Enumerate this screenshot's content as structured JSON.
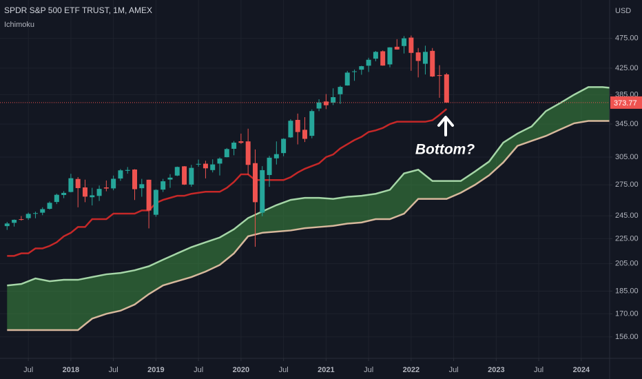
{
  "chart_data": {
    "type": "candlestick",
    "title": "SPDR S&P 500 ETF TRUST, 1M, AMEX",
    "indicator": "Ichimoku",
    "currency": "USD",
    "annotation": "Bottom?",
    "log_scale": true,
    "grid": true,
    "up_color": "#26a69a",
    "down_color": "#ef5350",
    "last_price": 373.77,
    "xlim": [
      "2017-03",
      "2024-05"
    ],
    "xticks": [
      {
        "value": "2017-07",
        "label": "Jul"
      },
      {
        "value": "2018-01",
        "label": "2018"
      },
      {
        "value": "2018-07",
        "label": "Jul"
      },
      {
        "value": "2019-01",
        "label": "2019"
      },
      {
        "value": "2019-07",
        "label": "Jul"
      },
      {
        "value": "2020-01",
        "label": "2020"
      },
      {
        "value": "2020-07",
        "label": "Jul"
      },
      {
        "value": "2021-01",
        "label": "2021"
      },
      {
        "value": "2021-07",
        "label": "Jul"
      },
      {
        "value": "2022-01",
        "label": "2022"
      },
      {
        "value": "2022-07",
        "label": "Jul"
      },
      {
        "value": "2023-01",
        "label": "2023"
      },
      {
        "value": "2023-07",
        "label": "Jul"
      },
      {
        "value": "2024-01",
        "label": "2024"
      }
    ],
    "ylim": [
      144,
      548
    ],
    "yticks": [
      {
        "value": 475,
        "label": "475.00"
      },
      {
        "value": 425,
        "label": "425.00"
      },
      {
        "value": 385,
        "label": "385.00"
      },
      {
        "value": 345,
        "label": "345.00"
      },
      {
        "value": 305,
        "label": "305.00"
      },
      {
        "value": 275,
        "label": "275.00"
      },
      {
        "value": 245,
        "label": "245.00"
      },
      {
        "value": 225,
        "label": "225.00"
      },
      {
        "value": 205,
        "label": "205.00"
      },
      {
        "value": 185,
        "label": "185.00"
      },
      {
        "value": 170,
        "label": "170.00"
      },
      {
        "value": 156,
        "label": "156.00"
      }
    ],
    "x": [
      "2017-04",
      "2017-05",
      "2017-06",
      "2017-07",
      "2017-08",
      "2017-09",
      "2017-10",
      "2017-11",
      "2017-12",
      "2018-01",
      "2018-02",
      "2018-03",
      "2018-04",
      "2018-05",
      "2018-06",
      "2018-07",
      "2018-08",
      "2018-09",
      "2018-10",
      "2018-11",
      "2018-12",
      "2019-01",
      "2019-02",
      "2019-03",
      "2019-04",
      "2019-05",
      "2019-06",
      "2019-07",
      "2019-08",
      "2019-09",
      "2019-10",
      "2019-11",
      "2019-12",
      "2020-01",
      "2020-02",
      "2020-03",
      "2020-04",
      "2020-05",
      "2020-06",
      "2020-07",
      "2020-08",
      "2020-09",
      "2020-10",
      "2020-11",
      "2020-12",
      "2021-01",
      "2021-02",
      "2021-03",
      "2021-04",
      "2021-05",
      "2021-06",
      "2021-07",
      "2021-08",
      "2021-09",
      "2021-10",
      "2021-11",
      "2021-12",
      "2022-01",
      "2022-02",
      "2022-03",
      "2022-04",
      "2022-05",
      "2022-06"
    ],
    "open": [
      235.8,
      238.7,
      241.97,
      242.9,
      247.5,
      247.9,
      251.5,
      258.0,
      264.8,
      267.8,
      281.1,
      272.4,
      262.6,
      263.9,
      272.4,
      271.4,
      281.6,
      289.8,
      291.2,
      271.6,
      280.3,
      245.98,
      270.2,
      280.5,
      284.7,
      294.7,
      275.3,
      296.7,
      297.6,
      290.6,
      297.7,
      304.9,
      314.6,
      323.5,
      323.4,
      298.2,
      247.98,
      285.3,
      303.6,
      309.6,
      328.3,
      350.4,
      337.7,
      330.2,
      365.6,
      375.3,
      373.7,
      385.6,
      398.4,
      419.4,
      422.6,
      428.9,
      440.3,
      452.6,
      430.98,
      460.3,
      461.6,
      476.3,
      450.7,
      432.0,
      453.3,
      414.0,
      415.2
    ],
    "high": [
      239.5,
      241.7,
      244.8,
      248.0,
      248.9,
      252.9,
      258.5,
      266.1,
      268.6,
      286.6,
      283.1,
      280.4,
      272.0,
      274.3,
      279.5,
      284.7,
      291.7,
      293.9,
      291.6,
      281.2,
      280.4,
      270.5,
      281.2,
      286.2,
      294.45,
      294.95,
      296.3,
      302.2,
      300.9,
      302.5,
      304.6,
      315.5,
      323.8,
      332.95,
      339.1,
      313.8,
      294.9,
      306.4,
      323.4,
      327.2,
      351.3,
      358.75,
      354.0,
      364.4,
      378.5,
      385.85,
      394.2,
      398.0,
      420.7,
      422.8,
      428.8,
      441.8,
      453.1,
      454.05,
      459.6,
      473.5,
      479.0,
      479.98,
      458.1,
      462.1,
      458.1,
      429.7,
      417.4
    ],
    "low": [
      232.5,
      235.4,
      240.7,
      241.3,
      242.8,
      245.6,
      250.9,
      256.0,
      261.7,
      267.4,
      252.9,
      257.8,
      254.7,
      259.0,
      268.5,
      269.5,
      279.2,
      286.7,
      259.9,
      263.1,
      233.8,
      244.2,
      267.8,
      272.0,
      284.1,
      274.9,
      273.1,
      294.3,
      281.7,
      288.1,
      284.8,
      304.7,
      307.1,
      320.4,
      285.5,
      218.3,
      244.6,
      272.99,
      296.7,
      306.0,
      327.7,
      319.8,
      322.6,
      327.2,
      362.0,
      364.8,
      370.4,
      371.9,
      398.2,
      405.4,
      414.7,
      419.0,
      436.1,
      428.8,
      426.4,
      455.3,
      448.9,
      420.8,
      410.6,
      415.1,
      411.2,
      380.5,
      373.3
    ],
    "close": [
      238.1,
      241.4,
      241.8,
      246.8,
      247.5,
      251.2,
      257.2,
      265.0,
      266.9,
      281.9,
      271.7,
      263.2,
      264.5,
      270.9,
      271.3,
      281.3,
      290.3,
      290.7,
      270.6,
      275.7,
      249.9,
      269.9,
      278.7,
      282.5,
      294.0,
      275.3,
      293.0,
      297.4,
      292.5,
      296.8,
      303.3,
      314.3,
      321.9,
      321.7,
      296.3,
      257.8,
      290.5,
      304.3,
      308.4,
      326.5,
      349.3,
      334.9,
      326.5,
      362.1,
      373.9,
      370.1,
      381.4,
      396.3,
      418.0,
      420.0,
      428.1,
      438.5,
      451.6,
      429.1,
      459.25,
      455.6,
      475.0,
      449.9,
      436.6,
      451.6,
      412.0,
      412.9,
      373.77
    ],
    "base_line": {
      "color": "#c62828",
      "values": [
        211,
        211,
        213,
        213,
        217,
        217,
        219,
        222,
        227,
        230,
        235,
        235,
        242,
        242,
        242,
        247,
        247,
        247,
        247,
        250,
        250,
        257,
        260,
        262,
        264,
        264,
        266,
        267,
        268,
        268,
        268,
        272,
        278,
        286,
        286,
        280,
        280,
        280,
        280,
        280,
        283,
        288,
        292,
        295,
        298,
        305,
        308,
        315,
        320,
        325,
        329,
        335,
        337,
        340,
        345,
        348,
        348,
        348,
        348,
        348,
        350,
        357,
        365
      ]
    },
    "cloud": {
      "fill": "#3d8b40",
      "x": [
        "2017-04",
        "2017-06",
        "2017-08",
        "2017-10",
        "2017-12",
        "2018-02",
        "2018-04",
        "2018-06",
        "2018-08",
        "2018-10",
        "2018-12",
        "2019-02",
        "2019-04",
        "2019-06",
        "2019-08",
        "2019-10",
        "2019-12",
        "2020-02",
        "2020-04",
        "2020-06",
        "2020-08",
        "2020-10",
        "2020-12",
        "2021-02",
        "2021-04",
        "2021-06",
        "2021-08",
        "2021-10",
        "2021-12",
        "2022-02",
        "2022-04",
        "2022-06",
        "2022-08",
        "2022-10",
        "2022-12",
        "2023-02",
        "2023-04",
        "2023-06",
        "2023-08",
        "2023-10",
        "2023-12",
        "2024-02",
        "2024-04",
        "2024-05"
      ],
      "span_a": {
        "color": "#a5d6a7",
        "values": [
          189,
          190,
          194,
          192,
          193,
          193,
          195,
          197,
          198,
          200,
          203,
          208,
          213,
          218,
          222,
          226,
          233,
          243,
          249,
          255,
          260,
          262,
          262,
          261,
          263,
          264,
          266,
          270,
          287,
          291,
          279,
          279,
          279,
          289,
          300,
          322,
          333,
          342,
          362,
          373,
          385,
          396,
          396,
          395
        ]
      },
      "span_b": {
        "color": "#d7b89c",
        "values": [
          160,
          160,
          160,
          160,
          160,
          160,
          167,
          170,
          172,
          176,
          183,
          189,
          192,
          195,
          199,
          204,
          213,
          227,
          230,
          231,
          232,
          234,
          235,
          236,
          238,
          239,
          242,
          242,
          247,
          261,
          261,
          261,
          267,
          275,
          285,
          299,
          318,
          324,
          330,
          338,
          346,
          349,
          349,
          349
        ]
      }
    }
  }
}
